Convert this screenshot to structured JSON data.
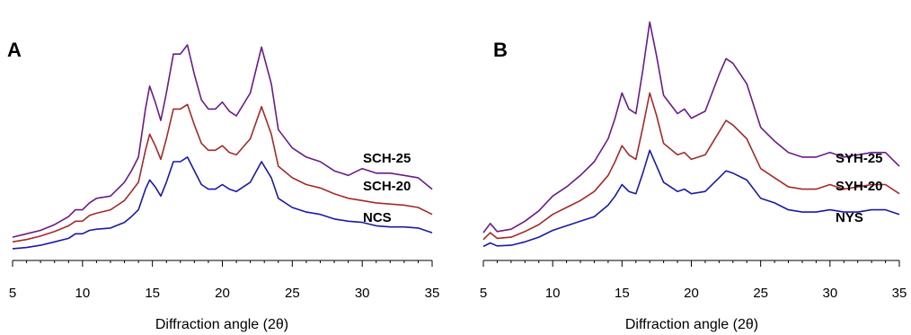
{
  "chart_data": [
    {
      "type": "line",
      "panel_label": "A",
      "xlabel": "Diffraction angle (2θ)",
      "ylabel": "",
      "xlim": [
        5,
        35
      ],
      "xticks": [
        5,
        10,
        15,
        20,
        25,
        30,
        35
      ],
      "grid": false,
      "colors": {
        "NCS": "#1a1aa6",
        "SCH-20": "#a52a2a",
        "SCH-25": "#6a1b8a"
      },
      "series": [
        {
          "name": "NCS",
          "x": [
            5,
            6,
            7,
            8,
            9,
            9.5,
            10,
            10.5,
            11,
            12,
            13,
            13.5,
            14,
            14.5,
            14.8,
            15.2,
            15.6,
            16,
            16.5,
            17,
            17.5,
            18,
            18.5,
            19,
            19.5,
            20,
            20.5,
            21,
            22,
            22.8,
            23.5,
            24,
            25,
            26,
            27,
            28,
            29,
            30,
            31,
            32,
            33,
            34,
            35
          ],
          "y": [
            2,
            2.5,
            3.5,
            5,
            6.5,
            8.5,
            8.5,
            10,
            10.5,
            11,
            13.5,
            16,
            19,
            28,
            32,
            29,
            25,
            31,
            40,
            40,
            42,
            36,
            30,
            28,
            28,
            30,
            28,
            27,
            31,
            40,
            33,
            24,
            20,
            18,
            17,
            15,
            14,
            13.5,
            12,
            11.5,
            11.5,
            11,
            9
          ]
        },
        {
          "name": "SCH-20",
          "x": [
            5,
            6,
            7,
            8,
            9,
            9.5,
            10,
            10.5,
            11,
            12,
            13,
            13.5,
            14,
            14.5,
            14.8,
            15.2,
            15.6,
            16,
            16.5,
            17,
            17.5,
            18,
            18.5,
            19,
            19.5,
            20,
            20.5,
            21,
            22,
            22.8,
            23.5,
            24,
            25,
            26,
            27,
            28,
            29,
            30,
            31,
            32,
            33,
            34,
            35
          ],
          "y": [
            5,
            6,
            7.5,
            9.5,
            12,
            14,
            14,
            16.5,
            17.5,
            19,
            23,
            27,
            31,
            45,
            52,
            47,
            41,
            50,
            63,
            63,
            65,
            56,
            48,
            45,
            45,
            47,
            44,
            43,
            50,
            64,
            52,
            38,
            33,
            30,
            28.5,
            26,
            24,
            23,
            22,
            21.5,
            21,
            20,
            17
          ]
        },
        {
          "name": "SCH-25",
          "x": [
            5,
            6,
            7,
            8,
            9,
            9.5,
            10,
            10.5,
            11,
            12,
            13,
            13.5,
            14,
            14.5,
            14.8,
            15.2,
            15.6,
            16,
            16.5,
            17,
            17.5,
            18,
            18.5,
            19,
            19.5,
            20,
            20.5,
            21,
            22,
            22.8,
            23.5,
            24,
            25,
            26,
            27,
            28,
            29,
            30,
            31,
            32,
            33,
            34,
            35
          ],
          "y": [
            7,
            8.5,
            10,
            12.5,
            16,
            19,
            19,
            22,
            24,
            25,
            31,
            36,
            42,
            63,
            73,
            66,
            58,
            70,
            87,
            87,
            91,
            78,
            67,
            63,
            63,
            66,
            62,
            60,
            70,
            90,
            74,
            54,
            46,
            42,
            40,
            36,
            34,
            37,
            35,
            35,
            34,
            33,
            28
          ]
        }
      ],
      "annotations": [
        "SCH-25",
        "SCH-20",
        "NCS"
      ]
    },
    {
      "type": "line",
      "panel_label": "B",
      "xlabel": "Diffraction angle (2θ)",
      "ylabel": "",
      "xlim": [
        5,
        35
      ],
      "xticks": [
        5,
        10,
        15,
        20,
        25,
        30,
        35
      ],
      "grid": false,
      "colors": {
        "NYS": "#1a1aa6",
        "SYH-20": "#a52a2a",
        "SYH-25": "#6a1b8a"
      },
      "series": [
        {
          "name": "NYS",
          "x": [
            5,
            5.5,
            6,
            7,
            8,
            9,
            10,
            11,
            12,
            13,
            14,
            14.5,
            15,
            15.5,
            16,
            16.5,
            17,
            17.5,
            18,
            19,
            19.5,
            20,
            21,
            22,
            22.5,
            23,
            24,
            25,
            26,
            27,
            28,
            29,
            30,
            31,
            32,
            33,
            34,
            35
          ],
          "y": [
            3,
            4.5,
            3.2,
            3.5,
            5,
            7,
            10,
            12,
            14,
            16,
            21,
            25,
            30,
            27,
            26,
            35,
            45,
            38,
            31,
            27,
            28,
            26,
            27,
            33,
            36,
            35,
            32,
            24,
            22,
            19,
            18,
            18,
            19,
            18,
            18,
            19,
            19,
            17
          ]
        },
        {
          "name": "SYH-20",
          "x": [
            5,
            5.5,
            6,
            7,
            8,
            9,
            10,
            11,
            12,
            13,
            14,
            14.5,
            15,
            15.5,
            16,
            16.5,
            17,
            17.5,
            18,
            19,
            19.5,
            20,
            21,
            22,
            22.5,
            23,
            24,
            25,
            26,
            27,
            28,
            29,
            30,
            31,
            32,
            33,
            34,
            35
          ],
          "y": [
            6,
            9,
            6.5,
            7,
            9.5,
            12.5,
            17,
            20,
            23,
            27,
            34,
            40,
            47,
            43,
            41,
            55,
            70,
            60,
            48,
            43,
            44,
            41,
            43,
            53,
            58,
            56,
            50,
            37,
            33,
            29,
            28,
            28,
            30,
            28,
            29,
            30,
            30,
            26
          ]
        },
        {
          "name": "SYH-25",
          "x": [
            5,
            5.5,
            6,
            7,
            8,
            9,
            10,
            11,
            12,
            13,
            14,
            14.5,
            15,
            15.5,
            16,
            16.5,
            17,
            17.5,
            18,
            19,
            19.5,
            20,
            21,
            22,
            22.5,
            23,
            24,
            25,
            26,
            27,
            28,
            29,
            30,
            31,
            32,
            33,
            34,
            35
          ],
          "y": [
            9,
            13,
            9.5,
            10.5,
            14,
            18.5,
            25,
            29,
            34,
            40,
            50,
            59,
            70,
            63,
            61,
            80,
            101,
            86,
            69,
            61,
            63,
            59,
            62,
            78,
            85,
            83,
            74,
            55,
            49,
            44,
            42,
            42,
            44,
            42,
            43,
            44,
            44,
            38
          ]
        }
      ],
      "annotations": [
        "SYH-25",
        "SYH-20",
        "NYS"
      ]
    }
  ]
}
